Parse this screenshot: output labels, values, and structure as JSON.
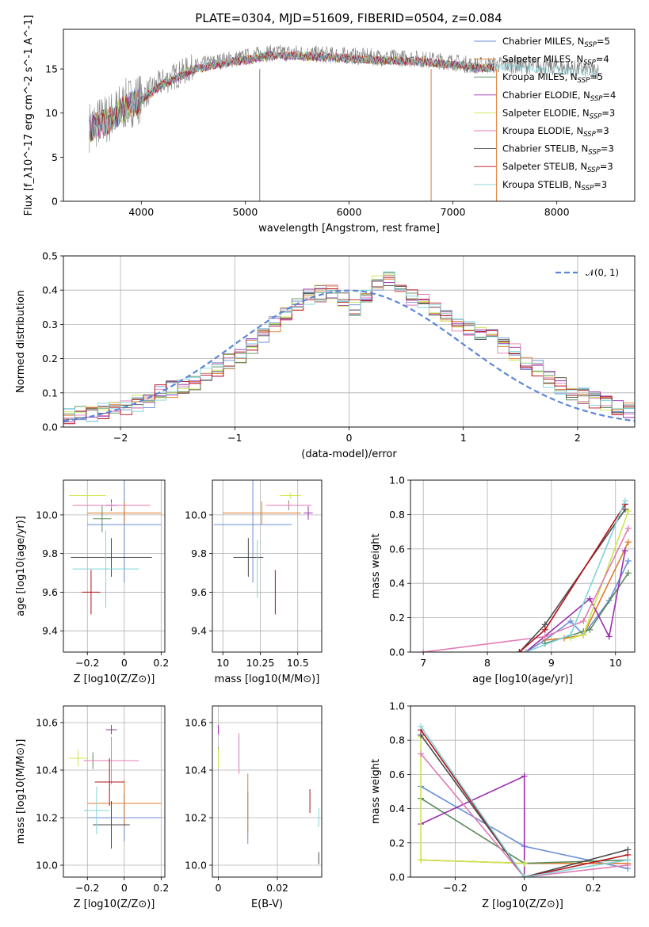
{
  "figure_title": "PLATE=0304, MJD=51609, FIBERID=0504, z=0.084",
  "model_colors": [
    "#6b8fd6",
    "#e07b2c",
    "#5a8a5a",
    "#9b2fae",
    "#c9e84a",
    "#e07bb4",
    "#4a4a4a",
    "#b5121b",
    "#7fd4d8"
  ],
  "legend_labels": [
    "Chabrier MILES, N_SSP=5",
    "Salpeter MILES, N_SSP=4",
    "Kroupa MILES, N_SSP=5",
    "Chabrier ELODIE, N_SSP=4",
    "Salpeter ELODIE, N_SSP=3",
    "Kroupa ELODIE, N_SSP=3",
    "Chabrier STELIB, N_SSP=3",
    "Salpeter STELIB, N_SSP=3",
    "Kroupa STELIB, N_SSP=3"
  ],
  "chart_data": [
    {
      "id": "spectrum",
      "type": "line",
      "title": "PLATE=0304, MJD=51609, FIBERID=0504, z=0.084",
      "xlabel": "wavelength [Angstrom, rest frame]",
      "ylabel": "Flux [f_λ10^-17 erg cm^-2 s^-1 A^-1]",
      "xlim": [
        3250,
        8750
      ],
      "ylim": [
        0,
        19.5
      ],
      "xticks": [
        4000,
        5000,
        6000,
        7000,
        8000
      ],
      "yticks": [
        0,
        5,
        10,
        15
      ],
      "grid": false,
      "legend": "right",
      "data_color": "#808080",
      "continuum_points": [
        [
          3500,
          8.5
        ],
        [
          3700,
          9.5
        ],
        [
          3850,
          11
        ],
        [
          4000,
          11.8
        ],
        [
          4200,
          13.5
        ],
        [
          4500,
          15.2
        ],
        [
          4800,
          16
        ],
        [
          5000,
          16.3
        ],
        [
          5200,
          16.8
        ],
        [
          5500,
          16.8
        ],
        [
          5800,
          16.6
        ],
        [
          6000,
          16.5
        ],
        [
          6300,
          16.3
        ],
        [
          6600,
          16.2
        ],
        [
          6800,
          16
        ],
        [
          7000,
          15.8
        ],
        [
          7200,
          15.4
        ],
        [
          7500,
          15.5
        ],
        [
          8000,
          15.2
        ],
        [
          8400,
          14.8
        ]
      ]
    },
    {
      "id": "residuals",
      "type": "histogram",
      "xlabel": "(data-model)/error",
      "ylabel": "Normed distribution",
      "xlim": [
        -2.5,
        2.5
      ],
      "ylim": [
        0,
        0.5
      ],
      "xticks": [
        -2,
        -1,
        0,
        1,
        2
      ],
      "yticks": [
        0.0,
        0.1,
        0.2,
        0.3,
        0.4,
        0.5
      ],
      "grid": true,
      "legend": "top-right",
      "legend_label": "N(0,1)",
      "bin_edges_start": -2.5,
      "bin_width": 0.1,
      "base_histogram": [
        0.03,
        0.035,
        0.04,
        0.045,
        0.05,
        0.06,
        0.07,
        0.08,
        0.1,
        0.11,
        0.12,
        0.13,
        0.15,
        0.17,
        0.19,
        0.21,
        0.24,
        0.27,
        0.3,
        0.33,
        0.36,
        0.38,
        0.39,
        0.39,
        0.37,
        0.35,
        0.38,
        0.42,
        0.43,
        0.41,
        0.38,
        0.37,
        0.34,
        0.32,
        0.3,
        0.29,
        0.28,
        0.27,
        0.24,
        0.22,
        0.19,
        0.17,
        0.14,
        0.12,
        0.1,
        0.09,
        0.08,
        0.07,
        0.06,
        0.05
      ]
    },
    {
      "id": "age-vs-Z",
      "type": "errorbar",
      "xlabel": "Z [log10(Z/Z⊙)]",
      "ylabel": "age [log10(age/yr)]",
      "xlim": [
        -0.33,
        0.22
      ],
      "ylim": [
        9.29,
        10.18
      ],
      "xticks": [
        -0.2,
        0.0,
        0.2
      ],
      "yticks": [
        9.4,
        9.6,
        9.8,
        10.0
      ],
      "grid": true,
      "points": [
        {
          "x": 0.0,
          "y": 9.95,
          "xerr": 0.2,
          "yerr": 0.6,
          "color": 0
        },
        {
          "x": 0.0,
          "y": 10.01,
          "xerr": 0.2,
          "yerr": 0.12,
          "color": 1
        },
        {
          "x": -0.12,
          "y": 9.98,
          "xerr": 0.05,
          "yerr": 0.14,
          "color": 2
        },
        {
          "x": -0.07,
          "y": 10.05,
          "xerr": 0.03,
          "yerr": 0.06,
          "color": 3
        },
        {
          "x": -0.2,
          "y": 10.1,
          "xerr": 0.1,
          "yerr": 0.05,
          "color": 4
        },
        {
          "x": -0.07,
          "y": 10.05,
          "xerr": 0.21,
          "yerr": 0.03,
          "color": 5
        },
        {
          "x": -0.07,
          "y": 9.78,
          "xerr": 0.22,
          "yerr": 0.2,
          "color": 6
        },
        {
          "x": -0.18,
          "y": 9.6,
          "xerr": 0.05,
          "yerr": 0.23,
          "color": 7
        },
        {
          "x": -0.1,
          "y": 9.72,
          "xerr": 0.18,
          "yerr": 0.4,
          "color": 8
        }
      ]
    },
    {
      "id": "age-vs-mass",
      "type": "errorbar",
      "xlabel": "mass [log10(M/M⊙)]",
      "ylabel": "",
      "xlim": [
        9.93,
        10.66
      ],
      "ylim": [
        9.29,
        10.18
      ],
      "xticks": [
        10.0,
        10.25,
        10.5
      ],
      "yticks": [
        9.4,
        9.6,
        9.8,
        10.0
      ],
      "grid": true,
      "points": [
        {
          "x": 10.2,
          "y": 9.95,
          "xerr": 0.26,
          "yerr": 0.6,
          "color": 0
        },
        {
          "x": 10.26,
          "y": 10.01,
          "xerr": 0.26,
          "yerr": 0.12,
          "color": 1
        },
        {
          "x": 10.44,
          "y": 10.05,
          "xerr": 0.0,
          "yerr": 0.05,
          "color": 2
        },
        {
          "x": 10.57,
          "y": 10.01,
          "xerr": 0.03,
          "yerr": 0.07,
          "color": 3
        },
        {
          "x": 10.45,
          "y": 10.1,
          "xerr": 0.07,
          "yerr": 0.03,
          "color": 4
        },
        {
          "x": 10.44,
          "y": 10.05,
          "xerr": 0.15,
          "yerr": 0.03,
          "color": 5
        },
        {
          "x": 10.17,
          "y": 9.78,
          "xerr": 0.1,
          "yerr": 0.2,
          "color": 6
        },
        {
          "x": 10.35,
          "y": 9.6,
          "xerr": 0.0,
          "yerr": 0.23,
          "color": 7
        },
        {
          "x": 10.23,
          "y": 9.72,
          "xerr": 0.0,
          "yerr": 0.3,
          "color": 8
        }
      ]
    },
    {
      "id": "weight-vs-age",
      "type": "line",
      "xlabel": "age [log10(age/yr)]",
      "ylabel": "mass weight",
      "xlim": [
        6.8,
        10.3
      ],
      "ylim": [
        0.0,
        1.0
      ],
      "xticks": [
        7,
        8,
        9,
        10
      ],
      "yticks": [
        0.0,
        0.2,
        0.4,
        0.6,
        0.8,
        1.0
      ],
      "grid": true,
      "series": [
        {
          "color": 0,
          "x": [
            8.6,
            8.9,
            9.3,
            9.5,
            9.9,
            10.2
          ],
          "y": [
            0.0,
            0.07,
            0.18,
            0.1,
            0.3,
            0.53
          ]
        },
        {
          "color": 1,
          "x": [
            8.9,
            9.2,
            9.5,
            10.2
          ],
          "y": [
            0.07,
            0.08,
            0.1,
            0.64
          ]
        },
        {
          "color": 2,
          "x": [
            8.9,
            9.5,
            9.6,
            10.2
          ],
          "y": [
            0.05,
            0.12,
            0.13,
            0.46
          ]
        },
        {
          "color": 3,
          "x": [
            8.6,
            9.6,
            9.9,
            10.15
          ],
          "y": [
            0.0,
            0.31,
            0.09,
            0.59
          ]
        },
        {
          "color": 4,
          "x": [
            9.3,
            9.5,
            10.2
          ],
          "y": [
            0.08,
            0.1,
            0.82
          ]
        },
        {
          "color": 5,
          "x": [
            7.0,
            8.9,
            9.5,
            10.2
          ],
          "y": [
            0.0,
            0.09,
            0.18,
            0.72
          ]
        },
        {
          "color": 6,
          "x": [
            8.5,
            8.9,
            10.15
          ],
          "y": [
            0.0,
            0.16,
            0.83
          ]
        },
        {
          "color": 7,
          "x": [
            8.5,
            8.9,
            10.15
          ],
          "y": [
            0.0,
            0.13,
            0.86
          ]
        },
        {
          "color": 8,
          "x": [
            8.6,
            9.3,
            10.15
          ],
          "y": [
            0.0,
            0.1,
            0.88
          ]
        }
      ]
    },
    {
      "id": "mass-vs-Z",
      "type": "errorbar",
      "xlabel": "Z [log10(Z/Z⊙)]",
      "ylabel": "mass [log10(M/M⊙)]",
      "xlim": [
        -0.33,
        0.22
      ],
      "ylim": [
        9.95,
        10.67
      ],
      "xticks": [
        -0.2,
        0.0,
        0.2
      ],
      "yticks": [
        10.0,
        10.2,
        10.4,
        10.6
      ],
      "grid": true,
      "points": [
        {
          "x": 0.0,
          "y": 10.2,
          "xerr": 0.2,
          "yerr": 0.2,
          "color": 0
        },
        {
          "x": 0.0,
          "y": 10.26,
          "xerr": 0.2,
          "yerr": 0.2,
          "color": 1
        },
        {
          "x": -0.17,
          "y": 10.44,
          "xerr": 0.05,
          "yerr": 0.07,
          "color": 2
        },
        {
          "x": -0.07,
          "y": 10.57,
          "xerr": 0.03,
          "yerr": 0.04,
          "color": 3
        },
        {
          "x": -0.25,
          "y": 10.45,
          "xerr": 0.05,
          "yerr": 0.07,
          "color": 4
        },
        {
          "x": -0.07,
          "y": 10.44,
          "xerr": 0.15,
          "yerr": 0.2,
          "color": 5
        },
        {
          "x": -0.07,
          "y": 10.17,
          "xerr": 0.1,
          "yerr": 0.2,
          "color": 6
        },
        {
          "x": -0.08,
          "y": 10.35,
          "xerr": 0.08,
          "yerr": 0.2,
          "color": 7
        },
        {
          "x": -0.15,
          "y": 10.23,
          "xerr": 0.07,
          "yerr": 0.2,
          "color": 8
        }
      ]
    },
    {
      "id": "mass-vs-ebv",
      "type": "errorbar",
      "xlabel": "E(B-V)",
      "ylabel": "",
      "xlim": [
        -0.002,
        0.035
      ],
      "ylim": [
        9.95,
        10.67
      ],
      "xticks": [
        0.0,
        0.02
      ],
      "yticks": [
        10.0,
        10.2,
        10.4,
        10.6
      ],
      "grid": true,
      "points": [
        {
          "x": 0.01,
          "y": 10.2,
          "xerr": 0.0,
          "yerr": 0.22,
          "color": 0
        },
        {
          "x": 0.01,
          "y": 10.26,
          "xerr": 0.0,
          "yerr": 0.25,
          "color": 1
        },
        {
          "x": 0.0,
          "y": 10.47,
          "xerr": 0.0,
          "yerr": 0.05,
          "color": 2
        },
        {
          "x": 0.0,
          "y": 10.57,
          "xerr": 0.0,
          "yerr": 0.04,
          "color": 3
        },
        {
          "x": 0.0,
          "y": 10.45,
          "xerr": 0.0,
          "yerr": 0.08,
          "color": 4
        },
        {
          "x": 0.007,
          "y": 10.47,
          "xerr": 0.0,
          "yerr": 0.17,
          "color": 5
        },
        {
          "x": 0.034,
          "y": 10.03,
          "xerr": 0.0,
          "yerr": 0.05,
          "color": 6
        },
        {
          "x": 0.031,
          "y": 10.27,
          "xerr": 0.0,
          "yerr": 0.1,
          "color": 7
        },
        {
          "x": 0.034,
          "y": 10.2,
          "xerr": 0.0,
          "yerr": 0.08,
          "color": 8
        }
      ]
    },
    {
      "id": "weight-vs-Z",
      "type": "line",
      "xlabel": "Z [log10(Z/Z⊙)]",
      "ylabel": "mass weight",
      "xlim": [
        -0.33,
        0.32
      ],
      "ylim": [
        0.0,
        1.0
      ],
      "xticks": [
        -0.2,
        0.0,
        0.2
      ],
      "yticks": [
        0.0,
        0.2,
        0.4,
        0.6,
        0.8,
        1.0
      ],
      "grid": true,
      "series": [
        {
          "color": 0,
          "x": [
            -0.3,
            0.0,
            0.3
          ],
          "y": [
            0.53,
            0.18,
            0.05
          ]
        },
        {
          "color": 1,
          "x": [
            -0.3,
            0.0,
            0.3
          ],
          "y": [
            0.1,
            0.08,
            0.08
          ]
        },
        {
          "color": 2,
          "x": [
            -0.3,
            0.0,
            0.3
          ],
          "y": [
            0.46,
            0.08,
            0.1
          ]
        },
        {
          "color": 3,
          "x": [
            -0.3,
            0.0,
            0.0
          ],
          "y": [
            0.31,
            0.59,
            0.0
          ]
        },
        {
          "color": 4,
          "x": [
            -0.3,
            -0.3,
            0.0
          ],
          "y": [
            0.82,
            0.1,
            0.08
          ]
        },
        {
          "color": 5,
          "x": [
            -0.3,
            0.0,
            0.3
          ],
          "y": [
            0.72,
            0.0,
            0.07
          ]
        },
        {
          "color": 6,
          "x": [
            -0.3,
            0.0,
            0.3
          ],
          "y": [
            0.83,
            0.0,
            0.16
          ]
        },
        {
          "color": 7,
          "x": [
            -0.3,
            0.0,
            0.3
          ],
          "y": [
            0.86,
            0.0,
            0.13
          ]
        },
        {
          "color": 8,
          "x": [
            -0.3,
            0.0,
            0.3
          ],
          "y": [
            0.88,
            0.0,
            0.1
          ]
        }
      ]
    }
  ]
}
